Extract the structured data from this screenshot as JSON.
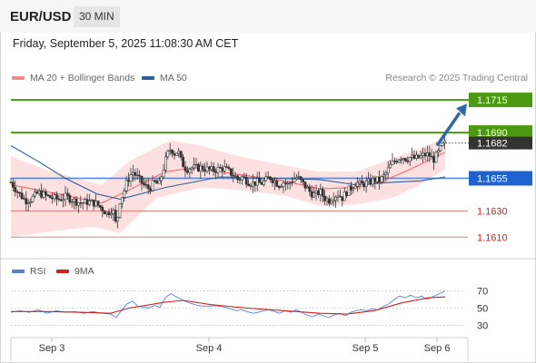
{
  "header": {
    "pair": "EUR/USD",
    "timeframe": "30 MIN"
  },
  "datetime": "Friday, September 5, 2025 11:08:30 AM CET",
  "legend": [
    {
      "label": "MA 20 + Bollinger Bands",
      "color": "#f08c8c"
    },
    {
      "label": "MA 50",
      "color": "#2d5f9a"
    }
  ],
  "credit": "Research © 2025 Trading Central",
  "rsi_legend": [
    {
      "label": "RSI",
      "color": "#5a82d2"
    },
    {
      "label": "9MA",
      "color": "#cc2222"
    }
  ],
  "chart_data": [
    {
      "type": "candlestick",
      "title": "EUR/USD 30 MIN",
      "ylim": [
        1.1597,
        1.1722
      ],
      "x_ticks": [
        "Sep 3",
        "Sep 4",
        "Sep 5",
        "Sep 6"
      ],
      "levels": [
        {
          "label": "1.1715",
          "value": 1.1715,
          "kind": "resistance",
          "color": "#4c9a12"
        },
        {
          "label": "1.1690",
          "value": 1.169,
          "kind": "resistance",
          "color": "#4c9a12"
        },
        {
          "label": "1.1682",
          "value": 1.1682,
          "kind": "last",
          "color": "#333333"
        },
        {
          "label": "1.1655",
          "value": 1.1655,
          "kind": "pivot",
          "color": "#1e62d0"
        },
        {
          "label": "1.1630",
          "value": 1.163,
          "kind": "support",
          "color": "#e88080"
        },
        {
          "label": "1.1610",
          "value": 1.161,
          "kind": "support",
          "color": "#e88080"
        }
      ],
      "arrow": {
        "from": 1.168,
        "to": 1.171,
        "direction": "up",
        "color": "#2f6aa8"
      },
      "close_path": [
        [
          0,
          1.1652
        ],
        [
          8,
          1.1644
        ],
        [
          16,
          1.1638
        ],
        [
          22,
          1.1639
        ],
        [
          30,
          1.1644
        ],
        [
          37,
          1.1642
        ],
        [
          45,
          1.164
        ],
        [
          53,
          1.1639
        ],
        [
          61,
          1.1641
        ],
        [
          69,
          1.1638
        ],
        [
          77,
          1.1636
        ],
        [
          85,
          1.1637
        ],
        [
          93,
          1.1636
        ],
        [
          100,
          1.1632
        ],
        [
          106,
          1.1628
        ],
        [
          112,
          1.1632
        ],
        [
          116,
          1.1618
        ],
        [
          120,
          1.1638
        ],
        [
          124,
          1.1644
        ],
        [
          128,
          1.1653
        ],
        [
          134,
          1.166
        ],
        [
          140,
          1.1655
        ],
        [
          146,
          1.165
        ],
        [
          152,
          1.1647
        ],
        [
          158,
          1.1652
        ],
        [
          163,
          1.165
        ],
        [
          168,
          1.1663
        ],
        [
          172,
          1.1673
        ],
        [
          176,
          1.1678
        ],
        [
          180,
          1.1674
        ],
        [
          184,
          1.1676
        ],
        [
          188,
          1.1667
        ],
        [
          193,
          1.1662
        ],
        [
          198,
          1.1663
        ],
        [
          204,
          1.1663
        ],
        [
          210,
          1.1663
        ],
        [
          216,
          1.1662
        ],
        [
          222,
          1.1661
        ],
        [
          228,
          1.1662
        ],
        [
          234,
          1.1663
        ],
        [
          240,
          1.166
        ],
        [
          246,
          1.1657
        ],
        [
          250,
          1.1654
        ],
        [
          255,
          1.1656
        ],
        [
          260,
          1.1653
        ],
        [
          265,
          1.1651
        ],
        [
          270,
          1.1652
        ],
        [
          275,
          1.1651
        ],
        [
          280,
          1.1653
        ],
        [
          285,
          1.1656
        ],
        [
          290,
          1.1653
        ],
        [
          295,
          1.165
        ],
        [
          300,
          1.1652
        ],
        [
          305,
          1.165
        ],
        [
          310,
          1.1654
        ],
        [
          315,
          1.1656
        ],
        [
          320,
          1.1652
        ],
        [
          325,
          1.1648
        ],
        [
          330,
          1.1644
        ],
        [
          335,
          1.1642
        ],
        [
          340,
          1.1645
        ],
        [
          345,
          1.164
        ],
        [
          350,
          1.1638
        ],
        [
          355,
          1.1641
        ],
        [
          360,
          1.1643
        ],
        [
          365,
          1.164
        ],
        [
          370,
          1.1645
        ],
        [
          375,
          1.1648
        ],
        [
          380,
          1.1652
        ],
        [
          385,
          1.165
        ],
        [
          390,
          1.1651
        ],
        [
          395,
          1.1652
        ],
        [
          400,
          1.1654
        ],
        [
          405,
          1.1653
        ],
        [
          410,
          1.1656
        ],
        [
          414,
          1.166
        ],
        [
          418,
          1.1665
        ],
        [
          422,
          1.1668
        ],
        [
          426,
          1.167
        ],
        [
          430,
          1.1672
        ],
        [
          435,
          1.167
        ],
        [
          440,
          1.1671
        ],
        [
          445,
          1.167
        ],
        [
          450,
          1.1671
        ],
        [
          455,
          1.1673
        ],
        [
          460,
          1.1673
        ],
        [
          465,
          1.1669
        ],
        [
          470,
          1.1674
        ],
        [
          475,
          1.168
        ],
        [
          478,
          1.1682
        ]
      ],
      "ma20": [
        [
          0,
          1.165
        ],
        [
          60,
          1.1642
        ],
        [
          100,
          1.1636
        ],
        [
          130,
          1.1646
        ],
        [
          170,
          1.166
        ],
        [
          200,
          1.1663
        ],
        [
          250,
          1.1658
        ],
        [
          300,
          1.1653
        ],
        [
          340,
          1.1647
        ],
        [
          380,
          1.1648
        ],
        [
          410,
          1.1653
        ],
        [
          440,
          1.1662
        ],
        [
          478,
          1.1675
        ]
      ],
      "ma50": [
        [
          0,
          1.168
        ],
        [
          30,
          1.1668
        ],
        [
          60,
          1.1655
        ],
        [
          95,
          1.1643
        ],
        [
          120,
          1.1639
        ],
        [
          170,
          1.1648
        ],
        [
          230,
          1.1656
        ],
        [
          290,
          1.1655
        ],
        [
          340,
          1.1654
        ],
        [
          380,
          1.165
        ],
        [
          420,
          1.1652
        ],
        [
          450,
          1.1653
        ],
        [
          478,
          1.1656
        ]
      ],
      "bb_upper": [
        [
          0,
          1.1672
        ],
        [
          40,
          1.1661
        ],
        [
          100,
          1.165
        ],
        [
          130,
          1.1668
        ],
        [
          175,
          1.1684
        ],
        [
          210,
          1.168
        ],
        [
          250,
          1.1672
        ],
        [
          300,
          1.1665
        ],
        [
          340,
          1.166
        ],
        [
          380,
          1.166
        ],
        [
          420,
          1.167
        ],
        [
          450,
          1.1678
        ],
        [
          478,
          1.1686
        ]
      ],
      "bb_lower": [
        [
          0,
          1.161
        ],
        [
          40,
          1.1614
        ],
        [
          90,
          1.1618
        ],
        [
          120,
          1.1613
        ],
        [
          160,
          1.164
        ],
        [
          210,
          1.1648
        ],
        [
          250,
          1.1646
        ],
        [
          300,
          1.1642
        ],
        [
          340,
          1.1634
        ],
        [
          380,
          1.1635
        ],
        [
          420,
          1.164
        ],
        [
          450,
          1.165
        ],
        [
          478,
          1.1662
        ]
      ]
    },
    {
      "type": "line",
      "title": "RSI",
      "ylim": [
        22,
        78
      ],
      "y_ticks": [
        30,
        50,
        70
      ],
      "rsi": [
        [
          0,
          45
        ],
        [
          10,
          47
        ],
        [
          20,
          45
        ],
        [
          30,
          48
        ],
        [
          40,
          44
        ],
        [
          50,
          47
        ],
        [
          60,
          45
        ],
        [
          70,
          46
        ],
        [
          80,
          44
        ],
        [
          90,
          46
        ],
        [
          100,
          44
        ],
        [
          110,
          43
        ],
        [
          116,
          39
        ],
        [
          122,
          48
        ],
        [
          128,
          55
        ],
        [
          134,
          58
        ],
        [
          140,
          52
        ],
        [
          146,
          51
        ],
        [
          152,
          50
        ],
        [
          158,
          53
        ],
        [
          164,
          51
        ],
        [
          170,
          62
        ],
        [
          176,
          67
        ],
        [
          182,
          63
        ],
        [
          188,
          60
        ],
        [
          194,
          57
        ],
        [
          200,
          55
        ],
        [
          206,
          53
        ],
        [
          212,
          52
        ],
        [
          218,
          52
        ],
        [
          224,
          53
        ],
        [
          230,
          52
        ],
        [
          236,
          51
        ],
        [
          242,
          49
        ],
        [
          248,
          47
        ],
        [
          254,
          48
        ],
        [
          260,
          46
        ],
        [
          266,
          44
        ],
        [
          272,
          45
        ],
        [
          278,
          47
        ],
        [
          284,
          48
        ],
        [
          290,
          46
        ],
        [
          296,
          44
        ],
        [
          302,
          47
        ],
        [
          308,
          45
        ],
        [
          314,
          48
        ],
        [
          320,
          45
        ],
        [
          326,
          42
        ],
        [
          332,
          40
        ],
        [
          338,
          43
        ],
        [
          344,
          41
        ],
        [
          350,
          39
        ],
        [
          356,
          42
        ],
        [
          362,
          44
        ],
        [
          368,
          41
        ],
        [
          374,
          45
        ],
        [
          380,
          47
        ],
        [
          386,
          48
        ],
        [
          392,
          47
        ],
        [
          398,
          49
        ],
        [
          404,
          48
        ],
        [
          410,
          52
        ],
        [
          416,
          55
        ],
        [
          422,
          60
        ],
        [
          428,
          64
        ],
        [
          434,
          62
        ],
        [
          440,
          65
        ],
        [
          446,
          62
        ],
        [
          452,
          64
        ],
        [
          458,
          60
        ],
        [
          464,
          63
        ],
        [
          470,
          66
        ],
        [
          478,
          70
        ]
      ],
      "ma9": [
        [
          0,
          46
        ],
        [
          40,
          46
        ],
        [
          80,
          45
        ],
        [
          110,
          44
        ],
        [
          130,
          50
        ],
        [
          170,
          57
        ],
        [
          190,
          59
        ],
        [
          220,
          54
        ],
        [
          260,
          50
        ],
        [
          300,
          47
        ],
        [
          340,
          44
        ],
        [
          370,
          43
        ],
        [
          400,
          47
        ],
        [
          430,
          56
        ],
        [
          460,
          62
        ],
        [
          478,
          63
        ]
      ]
    }
  ]
}
